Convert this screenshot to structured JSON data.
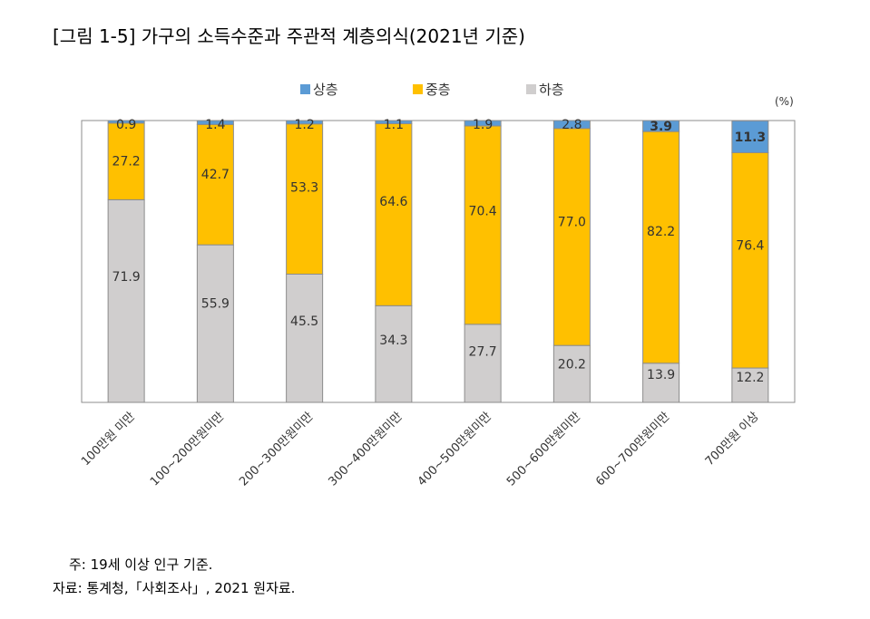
{
  "title": "[그림 1-5] 가구의 소득수준과 주관적 계층의식(2021년 기준)",
  "chart_data": {
    "type": "bar",
    "stacked": true,
    "unit": "(%)",
    "categories": [
      "100만원 미만",
      "100~200만원미만",
      "200~300만원미만",
      "300~400만원미만",
      "400~500만원미만",
      "500~600만원미만",
      "600~700만원미만",
      "700만원 이상"
    ],
    "series": [
      {
        "name": "상층",
        "color": "#5B9BD5",
        "values": [
          0.9,
          1.4,
          1.2,
          1.1,
          1.9,
          2.8,
          3.9,
          11.3
        ]
      },
      {
        "name": "중층",
        "color": "#FFC000",
        "values": [
          27.2,
          42.7,
          53.3,
          64.6,
          70.4,
          77.0,
          82.2,
          76.4
        ]
      },
      {
        "name": "하층",
        "color": "#D0CECE",
        "values": [
          71.9,
          55.9,
          45.5,
          34.3,
          27.7,
          20.2,
          13.9,
          12.2
        ]
      }
    ],
    "ylim": [
      0,
      100
    ],
    "legend": "top-center"
  },
  "footnotes": {
    "note": "주: 19세 이상 인구 기준.",
    "source": "자료: 통계청,「사회조사」, 2021 원자료."
  }
}
